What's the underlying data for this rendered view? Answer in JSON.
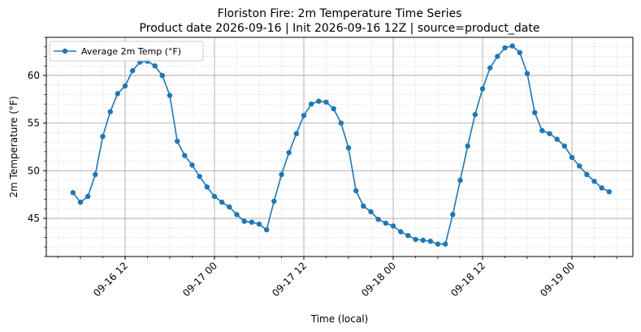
{
  "chart_data": {
    "type": "line",
    "title": "Floriston Fire: 2m Temperature Time Series",
    "subtitle": "Product date 2026-09-16 | Init 2026-09-16 12Z | source=product_date",
    "xlabel": "Time (local)",
    "ylabel": "2m Temperature (°F)",
    "x_tick_labels": [
      "09-16 12",
      "09-17 00",
      "09-17 12",
      "09-18 00",
      "09-18 12",
      "09-19 00"
    ],
    "y_ticks": [
      45,
      50,
      55,
      60
    ],
    "ylim": [
      41.0,
      64.0
    ],
    "grid": true,
    "legend_position": "top-left",
    "series": [
      {
        "name": "Average 2m Temp (°F)",
        "color": "#1f77b4",
        "x": [
          "2026-09-16 05:00",
          "2026-09-16 06:00",
          "2026-09-16 07:00",
          "2026-09-16 08:00",
          "2026-09-16 09:00",
          "2026-09-16 10:00",
          "2026-09-16 11:00",
          "2026-09-16 12:00",
          "2026-09-16 13:00",
          "2026-09-16 14:00",
          "2026-09-16 15:00",
          "2026-09-16 16:00",
          "2026-09-16 17:00",
          "2026-09-16 18:00",
          "2026-09-16 19:00",
          "2026-09-16 20:00",
          "2026-09-16 21:00",
          "2026-09-16 22:00",
          "2026-09-16 23:00",
          "2026-09-17 00:00",
          "2026-09-17 01:00",
          "2026-09-17 02:00",
          "2026-09-17 03:00",
          "2026-09-17 04:00",
          "2026-09-17 05:00",
          "2026-09-17 06:00",
          "2026-09-17 07:00",
          "2026-09-17 08:00",
          "2026-09-17 09:00",
          "2026-09-17 10:00",
          "2026-09-17 11:00",
          "2026-09-17 12:00",
          "2026-09-17 13:00",
          "2026-09-17 14:00",
          "2026-09-17 15:00",
          "2026-09-17 16:00",
          "2026-09-17 17:00",
          "2026-09-17 18:00",
          "2026-09-17 19:00",
          "2026-09-17 20:00",
          "2026-09-17 21:00",
          "2026-09-17 22:00",
          "2026-09-17 23:00",
          "2026-09-18 00:00",
          "2026-09-18 01:00",
          "2026-09-18 02:00",
          "2026-09-18 03:00",
          "2026-09-18 04:00",
          "2026-09-18 05:00",
          "2026-09-18 06:00",
          "2026-09-18 07:00",
          "2026-09-18 08:00",
          "2026-09-18 09:00",
          "2026-09-18 10:00",
          "2026-09-18 11:00",
          "2026-09-18 12:00",
          "2026-09-18 13:00",
          "2026-09-18 14:00",
          "2026-09-18 15:00",
          "2026-09-18 16:00",
          "2026-09-18 17:00",
          "2026-09-18 18:00",
          "2026-09-18 19:00",
          "2026-09-18 20:00",
          "2026-09-18 21:00",
          "2026-09-18 22:00",
          "2026-09-18 23:00",
          "2026-09-19 00:00",
          "2026-09-19 01:00",
          "2026-09-19 02:00",
          "2026-09-19 03:00",
          "2026-09-19 04:00",
          "2026-09-19 05:00"
        ],
        "values": [
          47.7,
          46.7,
          47.3,
          49.6,
          53.6,
          56.2,
          58.1,
          58.9,
          60.5,
          61.4,
          61.5,
          61.0,
          60.0,
          57.9,
          53.1,
          51.6,
          50.6,
          49.4,
          48.3,
          47.3,
          46.7,
          46.2,
          45.4,
          44.7,
          44.6,
          44.4,
          43.8,
          46.8,
          49.6,
          51.9,
          53.9,
          55.8,
          57.0,
          57.3,
          57.2,
          56.5,
          55.0,
          52.4,
          47.9,
          46.3,
          45.7,
          44.9,
          44.5,
          44.2,
          43.6,
          43.2,
          42.8,
          42.7,
          42.6,
          42.3,
          42.3,
          45.4,
          49.0,
          52.6,
          55.9,
          58.6,
          60.8,
          62.0,
          62.9,
          63.1,
          62.4,
          60.2,
          56.1,
          54.2,
          53.9,
          53.3,
          52.6,
          51.4,
          50.5,
          49.6,
          48.9,
          48.2,
          47.8
        ]
      }
    ]
  }
}
